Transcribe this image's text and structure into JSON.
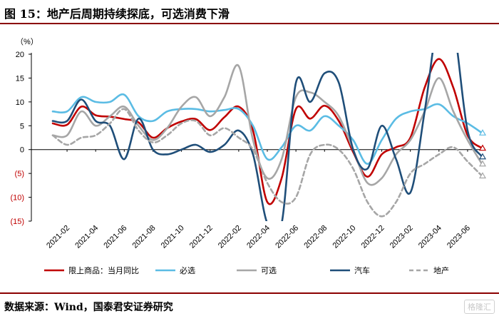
{
  "title": "图 15：地产后周期持续探底，可选消费下滑",
  "source": "数据来源：Wind，国泰君安证券研究",
  "watermark": "格隆汇",
  "chart_data": {
    "type": "line",
    "ylabel": "（%）",
    "ylim": [
      -15,
      20
    ],
    "yticks": [
      20,
      15,
      10,
      5,
      0,
      -5,
      -10,
      -15
    ],
    "ytick_labels": [
      "20",
      "15",
      "10",
      "5",
      "0",
      "(5)",
      "(10)",
      "(15)"
    ],
    "negative_tick_color": "#c00000",
    "x_tick_labels": [
      "2021-02",
      "2021-04",
      "2021-06",
      "2021-08",
      "2021-10",
      "2021-12",
      "2022-02",
      "2022-04",
      "2022-06",
      "2022-08",
      "2022-10",
      "2022-12",
      "2023-02",
      "2023-04",
      "2023-06"
    ],
    "x": [
      "2021-01",
      "2021-02",
      "2021-03",
      "2021-04",
      "2021-05",
      "2021-06",
      "2021-07",
      "2021-08",
      "2021-09",
      "2021-10",
      "2021-11",
      "2021-12",
      "2022-01",
      "2022-02",
      "2022-03",
      "2022-04",
      "2022-05",
      "2022-06",
      "2022-07",
      "2022-08",
      "2022-09",
      "2022-10",
      "2022-11",
      "2022-12",
      "2023-01",
      "2023-02",
      "2023-03",
      "2023-04",
      "2023-05",
      "2023-06",
      "2023-07"
    ],
    "legend_position": "bottom",
    "series": [
      {
        "name": "限上商品：当月同比",
        "color": "#c00000",
        "values": [
          5.5,
          5.2,
          9.0,
          7.2,
          6.9,
          6.4,
          5.7,
          2.5,
          4.5,
          5.9,
          6.4,
          4.1,
          6.8,
          9.0,
          4.0,
          -11.0,
          -6.0,
          8.5,
          6.5,
          9.2,
          6.0,
          -0.5,
          -5.7,
          -1.0,
          0.5,
          2.5,
          13.0,
          19.0,
          13.0,
          3.0,
          0.3
        ]
      },
      {
        "name": "必选",
        "color": "#5bbce4",
        "values": [
          8.0,
          8.0,
          11.0,
          10.0,
          10.0,
          11.5,
          7.0,
          6.0,
          8.0,
          8.5,
          8.5,
          8.0,
          8.3,
          8.5,
          5.0,
          -2.0,
          0.5,
          5.0,
          4.0,
          7.0,
          5.0,
          2.0,
          -3.0,
          2.0,
          6.5,
          8.0,
          8.5,
          9.5,
          7.0,
          5.5,
          3.5
        ]
      },
      {
        "name": "可选",
        "color": "#a6a6a6",
        "values": [
          3.0,
          3.0,
          8.0,
          5.0,
          7.0,
          9.0,
          5.0,
          2.0,
          4.5,
          9.0,
          11.0,
          7.0,
          11.0,
          17.5,
          2.0,
          -6.0,
          -2.0,
          11.0,
          12.0,
          10.0,
          7.0,
          0.0,
          -7.0,
          -6.0,
          -1.0,
          2.0,
          8.0,
          15.0,
          8.0,
          2.0,
          -3.0
        ]
      },
      {
        "name": "汽车",
        "color": "#1f4e79",
        "values": [
          6.0,
          6.0,
          10.5,
          6.0,
          5.0,
          -2.0,
          6.5,
          0.0,
          -1.0,
          0.0,
          1.0,
          -0.5,
          1.0,
          4.0,
          -1.0,
          -15.5,
          -15.5,
          14.0,
          10.0,
          16.0,
          14.0,
          0.0,
          -4.0,
          5.0,
          -2.0,
          -9.0,
          8.0,
          28.0,
          26.0,
          4.0,
          -1.5
        ]
      },
      {
        "name": "地产",
        "color": "#a6a6a6",
        "dashed": true,
        "values": [
          3.0,
          1.0,
          2.5,
          3.0,
          5.5,
          8.5,
          4.0,
          1.5,
          3.0,
          5.5,
          6.0,
          3.0,
          4.5,
          2.5,
          0.0,
          -7.0,
          -11.0,
          -10.0,
          -1.0,
          1.0,
          0.0,
          -4.0,
          -11.0,
          -14.0,
          -11.0,
          -5.0,
          -3.0,
          -1.0,
          0.5,
          -2.5,
          -5.5
        ]
      }
    ]
  }
}
